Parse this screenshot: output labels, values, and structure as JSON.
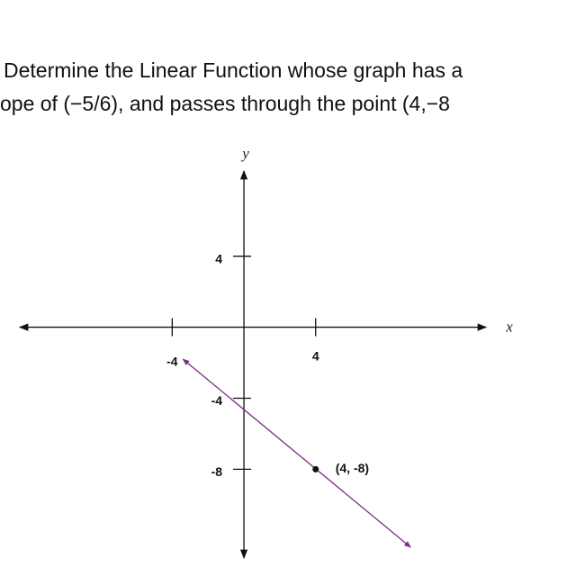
{
  "chart_data": {
    "type": "line",
    "title": [
      "Determine the Linear Function whose graph has a",
      "ope of (−5/6), and passes through the point (4,−8"
    ],
    "x_label": "x",
    "y_label": "y",
    "xlim": [
      -12.5,
      13.5
    ],
    "ylim": [
      -13,
      8.8
    ],
    "xticks": [
      -4,
      4
    ],
    "yticks": [
      4,
      -4,
      -8
    ],
    "series": [
      {
        "color": "#7b2c83",
        "x": [
          -3.4,
          9.3
        ],
        "values": [
          -1.8,
          -12.4
        ]
      }
    ],
    "points": {
      "color": "#111111",
      "x": [
        4
      ],
      "values": [
        -8
      ],
      "value_labels": [
        "(4, -8)"
      ]
    }
  }
}
